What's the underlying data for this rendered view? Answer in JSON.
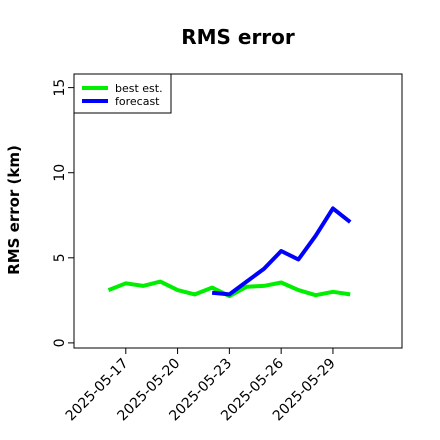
{
  "chart_data": {
    "type": "line",
    "title": "RMS error",
    "xlabel": "",
    "ylabel": "RMS error (km)",
    "x_ticks": [
      "2025-05-17",
      "2025-05-20",
      "2025-05-23",
      "2025-05-26",
      "2025-05-29"
    ],
    "y_ticks": [
      0,
      5,
      10,
      15
    ],
    "xlim": [
      "2025-05-14",
      "2025-06-02"
    ],
    "ylim": [
      -0.3,
      15.8
    ],
    "legend_position": "top-left",
    "grid": false,
    "series": [
      {
        "name": "best est.",
        "color": "#00ee00",
        "x": [
          "2025-05-16",
          "2025-05-17",
          "2025-05-18",
          "2025-05-19",
          "2025-05-20",
          "2025-05-21",
          "2025-05-22",
          "2025-05-23",
          "2025-05-24",
          "2025-05-25",
          "2025-05-26",
          "2025-05-27",
          "2025-05-28",
          "2025-05-29",
          "2025-05-30"
        ],
        "y": [
          3.1,
          3.5,
          3.35,
          3.6,
          3.1,
          2.85,
          3.25,
          2.75,
          3.3,
          3.35,
          3.55,
          3.1,
          2.8,
          3.0,
          2.85
        ]
      },
      {
        "name": "forecast",
        "color": "#0000ff",
        "x": [
          "2025-05-22",
          "2025-05-23",
          "2025-05-24",
          "2025-05-25",
          "2025-05-26",
          "2025-05-27",
          "2025-05-28",
          "2025-05-29",
          "2025-05-30"
        ],
        "y": [
          2.95,
          2.85,
          3.6,
          4.35,
          5.4,
          4.9,
          6.3,
          7.9,
          7.1
        ]
      }
    ]
  }
}
